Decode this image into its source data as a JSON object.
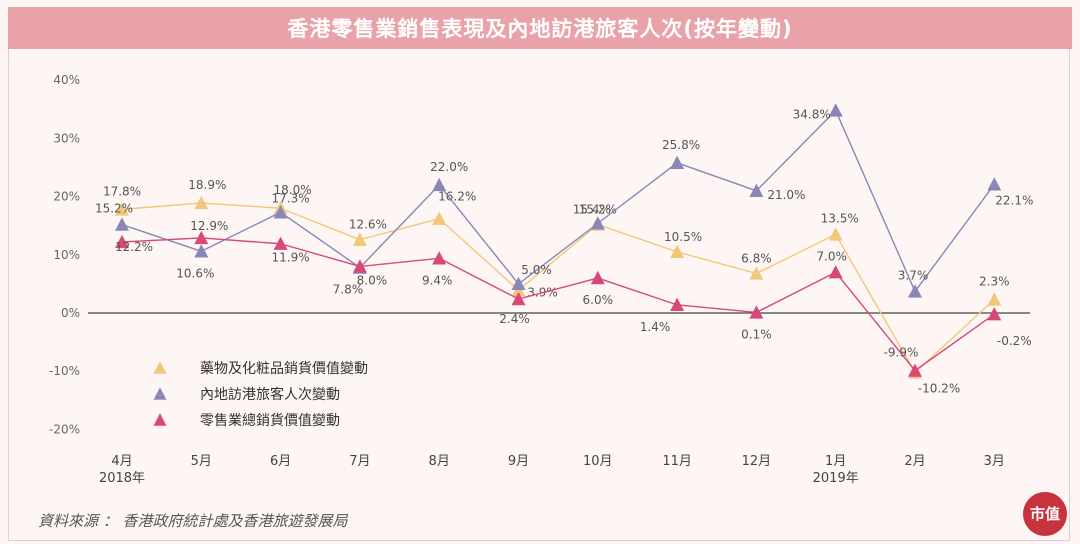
{
  "title": "香港零售業銷售表現及內地訪港旅客人次(按年變動)",
  "source": "資料來源 ： 香港政府統計處及香港旅遊發展局",
  "logo_text": "市值",
  "colors": {
    "background": "#fdf6f5",
    "title_bg": "#e9a2a8",
    "series_drugs": "#f1c879",
    "series_visitors": "#8a86b6",
    "series_retail": "#d8497a"
  },
  "chart_data": {
    "type": "line",
    "categories": [
      "4月",
      "5月",
      "6月",
      "7月",
      "8月",
      "9月",
      "10月",
      "11月",
      "12月",
      "1月",
      "2月",
      "3月"
    ],
    "category_sublabels": [
      "2018年",
      "",
      "",
      "",
      "",
      "",
      "",
      "",
      "",
      "2019年",
      "",
      ""
    ],
    "ylim": [
      -20,
      40
    ],
    "yticks": [
      -20,
      -10,
      0,
      10,
      20,
      30,
      40
    ],
    "ytick_labels": [
      "-20%",
      "-10%",
      "0%",
      "10%",
      "20%",
      "30%",
      "40%"
    ],
    "legend_position": "lower-left",
    "series": [
      {
        "name": "藥物及化粧品銷貨價值變動",
        "values": [
          17.8,
          18.9,
          18.0,
          12.6,
          16.2,
          3.9,
          15.2,
          10.5,
          6.8,
          13.5,
          -10.2,
          2.3
        ],
        "labels": [
          "17.8%",
          "18.9%",
          "18.0%",
          "12.6%",
          "16.2%",
          "3.9%",
          "15.2%",
          "10.5%",
          "6.8%",
          "13.5%",
          "-10.2%",
          "2.3%"
        ],
        "color": "#f1c879"
      },
      {
        "name": "內地訪港旅客人次變動",
        "values": [
          15.2,
          10.6,
          17.3,
          7.8,
          22.0,
          5.0,
          15.4,
          25.8,
          21.0,
          34.8,
          3.7,
          22.1
        ],
        "labels": [
          "15.2%",
          "10.6%",
          "17.3%",
          "7.8%",
          "22.0%",
          "5.0%",
          "15.4%",
          "25.8%",
          "21.0%",
          "34.8%",
          "3.7%",
          "22.1%"
        ],
        "color": "#8a86b6"
      },
      {
        "name": "零售業總銷貨價值變動",
        "values": [
          12.2,
          12.9,
          11.9,
          8.0,
          9.4,
          2.4,
          6.0,
          1.4,
          0.1,
          7.0,
          -9.9,
          -0.2
        ],
        "labels": [
          "12.2%",
          "12.9%",
          "11.9%",
          "8.0%",
          "9.4%",
          "2.4%",
          "6.0%",
          "1.4%",
          "0.1%",
          "7.0%",
          "-9.9%",
          "-0.2%"
        ],
        "color": "#d8497a"
      }
    ]
  }
}
